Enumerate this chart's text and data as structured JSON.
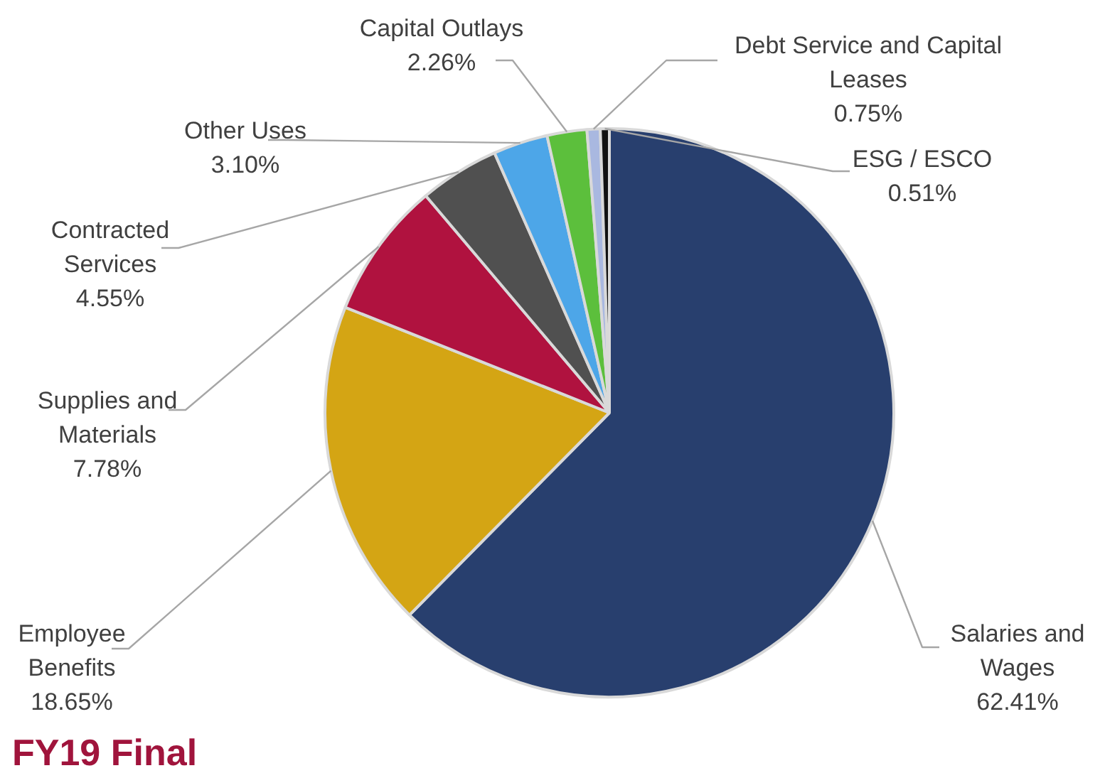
{
  "chart_data": {
    "type": "pie",
    "categories": [
      "Salaries and Wages",
      "Employee Benefits",
      "Supplies and Materials",
      "Contracted Services",
      "Other Uses",
      "Capital Outlays",
      "Debt Service and Capital Leases",
      "ESG / ESCO"
    ],
    "values": [
      62.41,
      18.65,
      7.78,
      4.55,
      3.1,
      2.26,
      0.75,
      0.51
    ],
    "colors": [
      "#283f6e",
      "#d4a514",
      "#b0123f",
      "#505050",
      "#4da6e8",
      "#5cbf3c",
      "#a9b8e0",
      "#111111"
    ],
    "value_labels": [
      "62.41%",
      "18.65%",
      "7.78%",
      "4.55%",
      "3.10%",
      "2.26%",
      "0.75%",
      "0.51%"
    ],
    "annotations": [
      "FY19 Final"
    ]
  }
}
